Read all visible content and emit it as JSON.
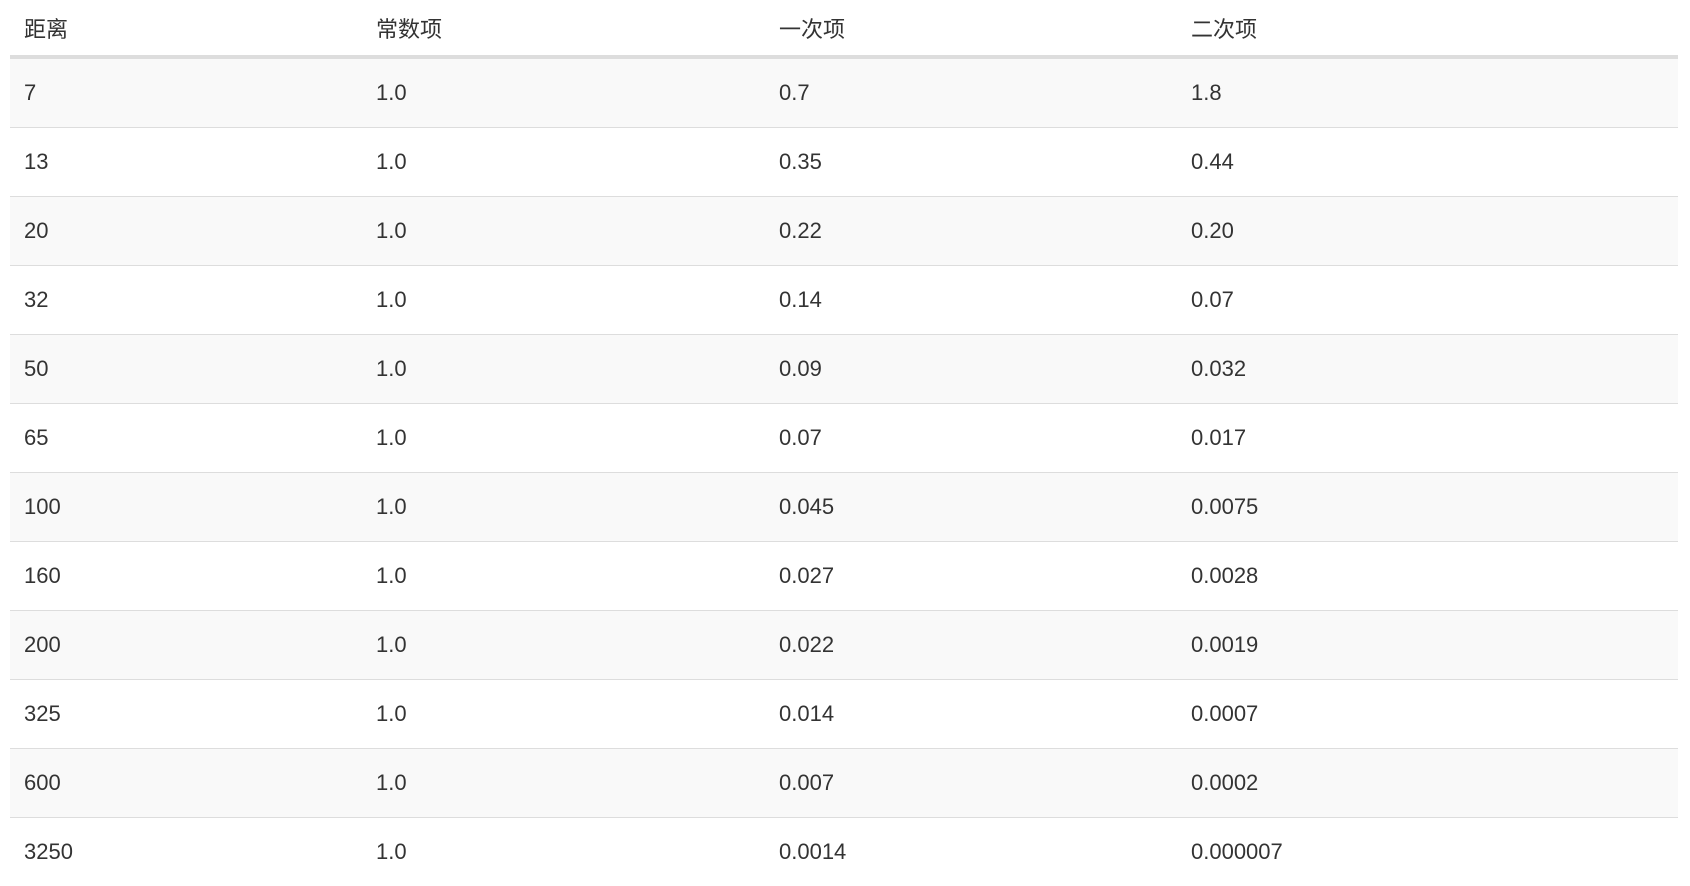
{
  "table": {
    "headers": [
      "距离",
      "常数项",
      "一次项",
      "二次项"
    ],
    "rows": [
      [
        "7",
        "1.0",
        "0.7",
        "1.8"
      ],
      [
        "13",
        "1.0",
        "0.35",
        "0.44"
      ],
      [
        "20",
        "1.0",
        "0.22",
        "0.20"
      ],
      [
        "32",
        "1.0",
        "0.14",
        "0.07"
      ],
      [
        "50",
        "1.0",
        "0.09",
        "0.032"
      ],
      [
        "65",
        "1.0",
        "0.07",
        "0.017"
      ],
      [
        "100",
        "1.0",
        "0.045",
        "0.0075"
      ],
      [
        "160",
        "1.0",
        "0.027",
        "0.0028"
      ],
      [
        "200",
        "1.0",
        "0.022",
        "0.0019"
      ],
      [
        "325",
        "1.0",
        "0.014",
        "0.0007"
      ],
      [
        "600",
        "1.0",
        "0.007",
        "0.0002"
      ],
      [
        "3250",
        "1.0",
        "0.0014",
        "0.000007"
      ]
    ]
  },
  "colors": {
    "stripe": "#f9f9f9",
    "border": "#dddddd",
    "text": "#333333"
  }
}
